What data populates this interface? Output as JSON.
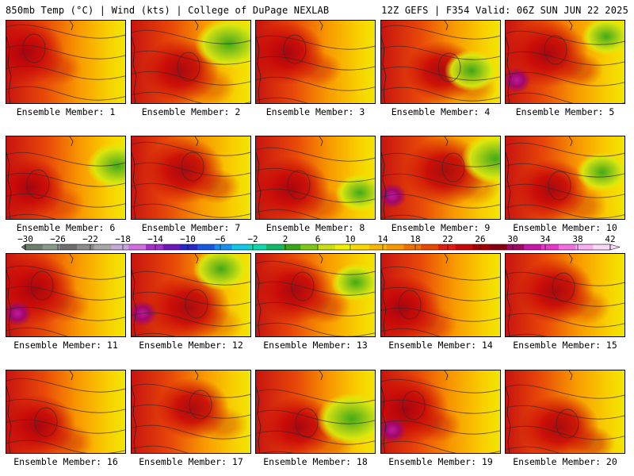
{
  "header": {
    "left": "850mb Temp (°C) | Wind (kts) | College of DuPage NEXLAB",
    "right": "12Z GEFS | F354 Valid: 06Z SUN JUN 22 2025"
  },
  "members": [
    {
      "label": "Ensemble Member: 1",
      "warmth": 0.55,
      "hot": 0.55,
      "cool": 0.1
    },
    {
      "label": "Ensemble Member: 2",
      "warmth": 0.45,
      "hot": 0.55,
      "cool": 0.6
    },
    {
      "label": "Ensemble Member: 3",
      "warmth": 0.6,
      "hot": 0.5,
      "cool": 0.1
    },
    {
      "label": "Ensemble Member: 4",
      "warmth": 0.5,
      "hot": 0.45,
      "cool": 0.3
    },
    {
      "label": "Ensemble Member: 5",
      "warmth": 0.7,
      "hot": 0.65,
      "cool": 0.2
    },
    {
      "label": "Ensemble Member: 6",
      "warmth": 0.4,
      "hot": 0.4,
      "cool": 0.45
    },
    {
      "label": "Ensemble Member: 7",
      "warmth": 0.7,
      "hot": 0.6,
      "cool": 0.05
    },
    {
      "label": "Ensemble Member: 8",
      "warmth": 0.45,
      "hot": 0.55,
      "cool": 0.2
    },
    {
      "label": "Ensemble Member: 9",
      "warmth": 0.45,
      "hot": 0.7,
      "cool": 0.6
    },
    {
      "label": "Ensemble Member: 10",
      "warmth": 0.5,
      "hot": 0.45,
      "cool": 0.25
    },
    {
      "label": "Ensemble Member: 11",
      "warmth": 0.55,
      "hot": 0.75,
      "cool": 0.05
    },
    {
      "label": "Ensemble Member: 12",
      "warmth": 0.35,
      "hot": 0.7,
      "cool": 0.35
    },
    {
      "label": "Ensemble Member: 13",
      "warmth": 0.7,
      "hot": 0.6,
      "cool": 0.2
    },
    {
      "label": "Ensemble Member: 14",
      "warmth": 0.5,
      "hot": 0.6,
      "cool": 0.05
    },
    {
      "label": "Ensemble Member: 15",
      "warmth": 0.5,
      "hot": 0.55,
      "cool": 0.05
    },
    {
      "label": "Ensemble Member: 16",
      "warmth": 0.6,
      "hot": 0.5,
      "cool": 0.05
    },
    {
      "label": "Ensemble Member: 17",
      "warmth": 0.5,
      "hot": 0.45,
      "cool": 0.1
    },
    {
      "label": "Ensemble Member: 18",
      "warmth": 0.4,
      "hot": 0.45,
      "cool": 0.65
    },
    {
      "label": "Ensemble Member: 19",
      "warmth": 0.65,
      "hot": 0.75,
      "cool": 0.05
    },
    {
      "label": "Ensemble Member: 20",
      "warmth": 0.75,
      "hot": 0.6,
      "cool": 0.05
    }
  ],
  "colorbar": {
    "labels": [
      "-30",
      "-26",
      "-22",
      "-18",
      "-14",
      "-10",
      "-6",
      "-2",
      "2",
      "6",
      "10",
      "14",
      "18",
      "22",
      "26",
      "30",
      "34",
      "38",
      "42"
    ],
    "colors": [
      "#6b7f6b",
      "#8a9a8a",
      "#6e6e6e",
      "#8c8c8c",
      "#a8a8a8",
      "#c8a8d8",
      "#d070e0",
      "#a030c8",
      "#6a18b8",
      "#2828c8",
      "#1858e0",
      "#1890f0",
      "#10c8e8",
      "#10d8b0",
      "#10b868",
      "#38a818",
      "#80c818",
      "#c8e010",
      "#f0f000",
      "#f8d800",
      "#f8b800",
      "#f89800",
      "#f07000",
      "#e84800",
      "#e01c10",
      "#c80808",
      "#a80000",
      "#880010",
      "#a00868",
      "#c818a8",
      "#e838c8",
      "#f070e0",
      "#f8b0f0",
      "#f8d8f8"
    ]
  }
}
